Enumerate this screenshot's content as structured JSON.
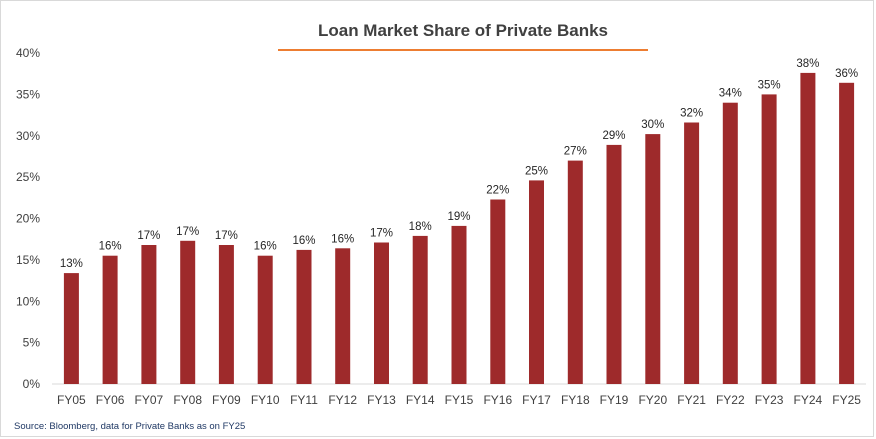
{
  "chart_data": {
    "type": "bar",
    "title": "Loan Market Share of Private Banks",
    "categories": [
      "FY05",
      "FY06",
      "FY07",
      "FY08",
      "FY09",
      "FY10",
      "FY11",
      "FY12",
      "FY13",
      "FY14",
      "FY15",
      "FY16",
      "FY17",
      "FY18",
      "FY19",
      "FY20",
      "FY21",
      "FY22",
      "FY23",
      "FY24",
      "FY25"
    ],
    "values": [
      13.4,
      15.5,
      16.8,
      17.3,
      16.8,
      15.5,
      16.2,
      16.4,
      17.1,
      17.9,
      19.1,
      22.3,
      24.6,
      27.0,
      28.9,
      30.2,
      31.6,
      34.0,
      35.0,
      37.6,
      36.4
    ],
    "data_labels": [
      "13%",
      "16%",
      "17%",
      "17%",
      "17%",
      "16%",
      "16%",
      "16%",
      "17%",
      "18%",
      "19%",
      "22%",
      "25%",
      "27%",
      "29%",
      "30%",
      "32%",
      "34%",
      "35%",
      "38%",
      "36%"
    ],
    "yticks": [
      "0%",
      "5%",
      "10%",
      "15%",
      "20%",
      "25%",
      "30%",
      "35%",
      "40%"
    ],
    "ylim": [
      0,
      40
    ],
    "grid": false,
    "legend": "none",
    "bar_color": "#9e2a2b",
    "title_underline_color": "#ed7d31",
    "source": "Source: Bloomberg, data for Private Banks as on FY25"
  }
}
